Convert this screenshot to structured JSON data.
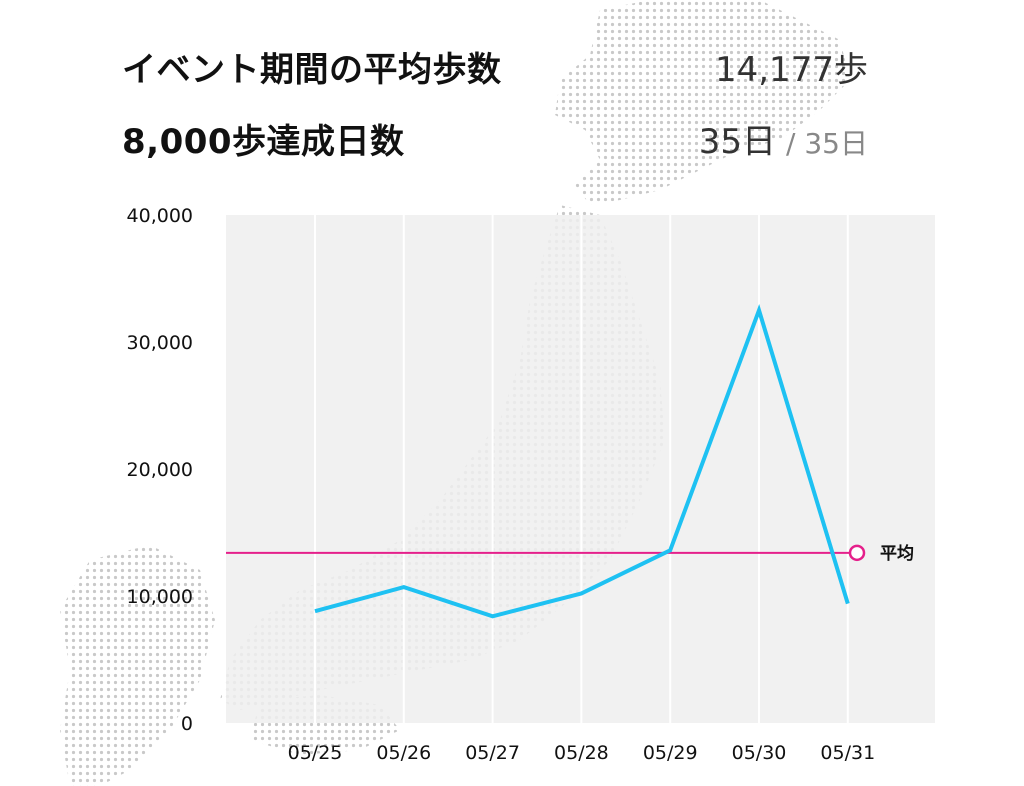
{
  "summary": {
    "avg_steps_label": "イベント期間の平均歩数",
    "avg_steps_value": "14,177歩",
    "goal_days_label": "8,000歩達成日数",
    "goal_days_value": "35日",
    "goal_days_total": "/ 35日"
  },
  "colors": {
    "line": "#1ec1f2",
    "average": "#e5208b",
    "plot_bg": "#eeeeee",
    "grid": "#ffffff",
    "map_dots": "#c9c9c9"
  },
  "chart_data": {
    "type": "line",
    "categories": [
      "05/25",
      "05/26",
      "05/27",
      "05/28",
      "05/29",
      "05/30",
      "05/31"
    ],
    "series": [
      {
        "values": [
          8800,
          10700,
          8400,
          10200,
          13600,
          32500,
          9400
        ]
      }
    ],
    "average": {
      "label": "平均",
      "value": 13400
    },
    "ylim": [
      0,
      40000
    ],
    "yticks": [
      "0",
      "10,000",
      "20,000",
      "30,000",
      "40,000"
    ],
    "ytick_values": [
      0,
      10000,
      20000,
      30000,
      40000
    ],
    "grid": "vertical",
    "title": "",
    "xlabel": "",
    "ylabel": ""
  }
}
